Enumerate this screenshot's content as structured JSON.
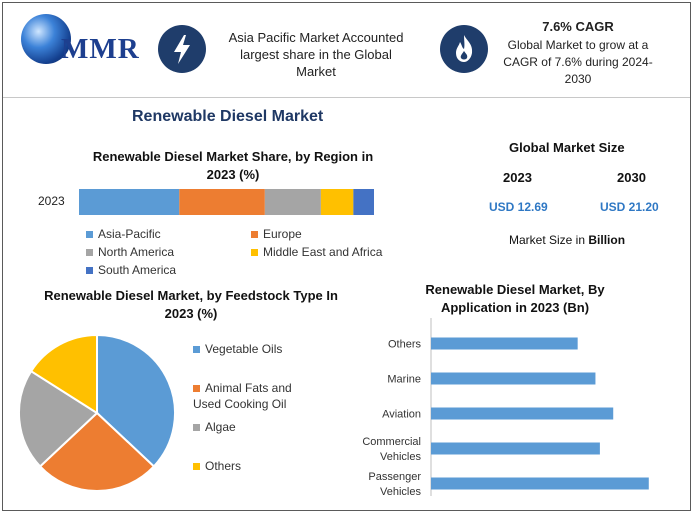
{
  "header": {
    "logo_text": "MMR",
    "banner1_text": "Asia Pacific Market Accounted largest share in the Global Market",
    "banner2_title": "7.6% CAGR",
    "banner2_text": "Global Market to grow at a CAGR of 7.6% during 2024-2030",
    "icon1": "lightning-icon",
    "icon2": "flame-icon"
  },
  "main_title": "Renewable Diesel Market",
  "global_market": {
    "title": "Global Market Size",
    "year1": "2023",
    "year2": "2030",
    "value1": "USD 12.69",
    "value2": "USD 21.20",
    "note_prefix": "Market Size in ",
    "note_bold": "Billion"
  },
  "colors": {
    "blue": "#5b9bd5",
    "orange": "#ed7d31",
    "gray": "#a5a5a5",
    "yellow": "#ffc000",
    "darkblue": "#4472c4",
    "bar_blue": "#5b9bd5",
    "title_navy": "#1f3864",
    "value_blue": "#2f78c4"
  },
  "chart_data": [
    {
      "type": "bar",
      "orientation": "horizontal",
      "stacked": true,
      "title": "Renewable Diesel Market Share, by Region in 2023 (%)",
      "categories": [
        "2023"
      ],
      "series": [
        {
          "name": "Asia-Pacific",
          "values": [
            34
          ]
        },
        {
          "name": "Europe",
          "values": [
            29
          ]
        },
        {
          "name": "North America",
          "values": [
            19
          ]
        },
        {
          "name": "Middle East and Africa",
          "values": [
            11
          ]
        },
        {
          "name": "South America",
          "values": [
            7
          ]
        }
      ],
      "legend": "bottom"
    },
    {
      "type": "pie",
      "title": "Renewable Diesel Market, by Feedstock Type In 2023 (%)",
      "labels": [
        "Vegetable Oils",
        "Animal Fats and Used Cooking Oil",
        "Algae",
        "Others"
      ],
      "values": [
        37,
        26,
        21,
        16
      ],
      "legend": "right"
    },
    {
      "type": "bar",
      "orientation": "horizontal",
      "title": "Renewable Diesel Market, By Application in 2023 (Bn)",
      "categories": [
        "Others",
        "Marine",
        "Aviation",
        "Commercial Vehicles",
        "Passenger Vehicles"
      ],
      "category_lines": [
        [
          "Others"
        ],
        [
          "Marine"
        ],
        [
          "Aviation"
        ],
        [
          "Commercial",
          "Vehicles"
        ],
        [
          "Passenger",
          "Vehicles"
        ]
      ],
      "values": [
        1.65,
        1.85,
        2.05,
        1.9,
        2.45
      ],
      "xlim": [
        0,
        2.7
      ]
    }
  ]
}
